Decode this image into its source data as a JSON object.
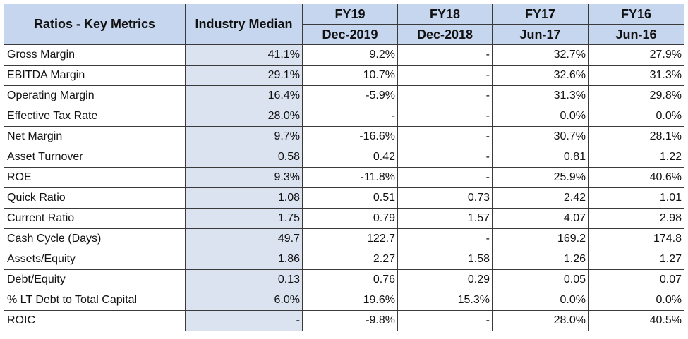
{
  "table": {
    "title": "Ratios - Key Metrics",
    "median_header": "Industry Median",
    "periods": [
      {
        "fy": "FY19",
        "date": "Dec-2019"
      },
      {
        "fy": "FY18",
        "date": "Dec-2018"
      },
      {
        "fy": "FY17",
        "date": "Jun-17"
      },
      {
        "fy": "FY16",
        "date": "Jun-16"
      }
    ],
    "rows": [
      {
        "metric": "Gross Margin",
        "median": "41.1%",
        "values": [
          "9.2%",
          "-",
          "32.7%",
          "27.9%"
        ]
      },
      {
        "metric": "EBITDA Margin",
        "median": "29.1%",
        "values": [
          "10.7%",
          "-",
          "32.6%",
          "31.3%"
        ]
      },
      {
        "metric": "Operating Margin",
        "median": "16.4%",
        "values": [
          "-5.9%",
          "-",
          "31.3%",
          "29.8%"
        ]
      },
      {
        "metric": "Effective Tax Rate",
        "median": "28.0%",
        "values": [
          "-",
          "-",
          "0.0%",
          "0.0%"
        ]
      },
      {
        "metric": "Net Margin",
        "median": "9.7%",
        "values": [
          "-16.6%",
          "-",
          "30.7%",
          "28.1%"
        ]
      },
      {
        "metric": "Asset Turnover",
        "median": "0.58",
        "values": [
          "0.42",
          "-",
          "0.81",
          "1.22"
        ]
      },
      {
        "metric": "ROE",
        "median": "9.3%",
        "values": [
          "-11.8%",
          "-",
          "25.9%",
          "40.6%"
        ]
      },
      {
        "metric": "Quick Ratio",
        "median": "1.08",
        "values": [
          "0.51",
          "0.73",
          "2.42",
          "1.01"
        ]
      },
      {
        "metric": "Current Ratio",
        "median": "1.75",
        "values": [
          "0.79",
          "1.57",
          "4.07",
          "2.98"
        ]
      },
      {
        "metric": "Cash Cycle (Days)",
        "median": "49.7",
        "values": [
          "122.7",
          "-",
          "169.2",
          "174.8"
        ]
      },
      {
        "metric": "Assets/Equity",
        "median": "1.86",
        "values": [
          "2.27",
          "1.58",
          "1.26",
          "1.27"
        ]
      },
      {
        "metric": "Debt/Equity",
        "median": "0.13",
        "values": [
          "0.76",
          "0.29",
          "0.05",
          "0.07"
        ]
      },
      {
        "metric": "% LT Debt to Total Capital",
        "median": "6.0%",
        "values": [
          "19.6%",
          "15.3%",
          "0.0%",
          "0.0%"
        ]
      },
      {
        "metric": "ROIC",
        "median": "-",
        "values": [
          "-9.8%",
          "-",
          "28.0%",
          "40.5%"
        ]
      }
    ]
  }
}
